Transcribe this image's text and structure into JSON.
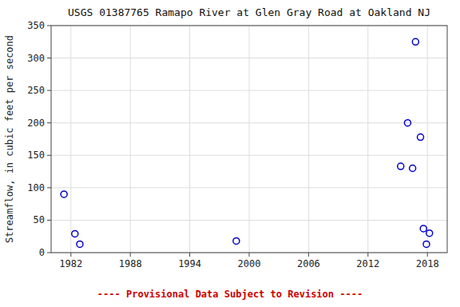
{
  "chart_data": {
    "type": "scatter",
    "title": "USGS 01387765 Ramapo River at Glen Gray Road at Oakland NJ",
    "y_label": "Streamflow, in cubic feet per second",
    "x": [
      1981.3,
      1982.4,
      1982.9,
      1998.7,
      2015.3,
      2016.0,
      2016.8,
      2017.3,
      2016.5,
      2017.6,
      2017.9,
      2018.2
    ],
    "values": [
      90,
      29,
      13,
      18,
      133,
      200,
      325,
      178,
      130,
      37,
      13,
      30
    ],
    "color": "#0000cc",
    "marker": "circle",
    "xlim": [
      1980,
      2020
    ],
    "ylim": [
      0,
      350
    ],
    "xticks": [
      1982,
      1988,
      1994,
      2000,
      2006,
      2012,
      2018
    ],
    "yticks": [
      0,
      50,
      100,
      150,
      200,
      250,
      300,
      350
    ],
    "grid": true,
    "annotations": [
      {
        "text": "---- Provisional Data Subject to Revision ----",
        "color": "#cc0000"
      }
    ]
  }
}
